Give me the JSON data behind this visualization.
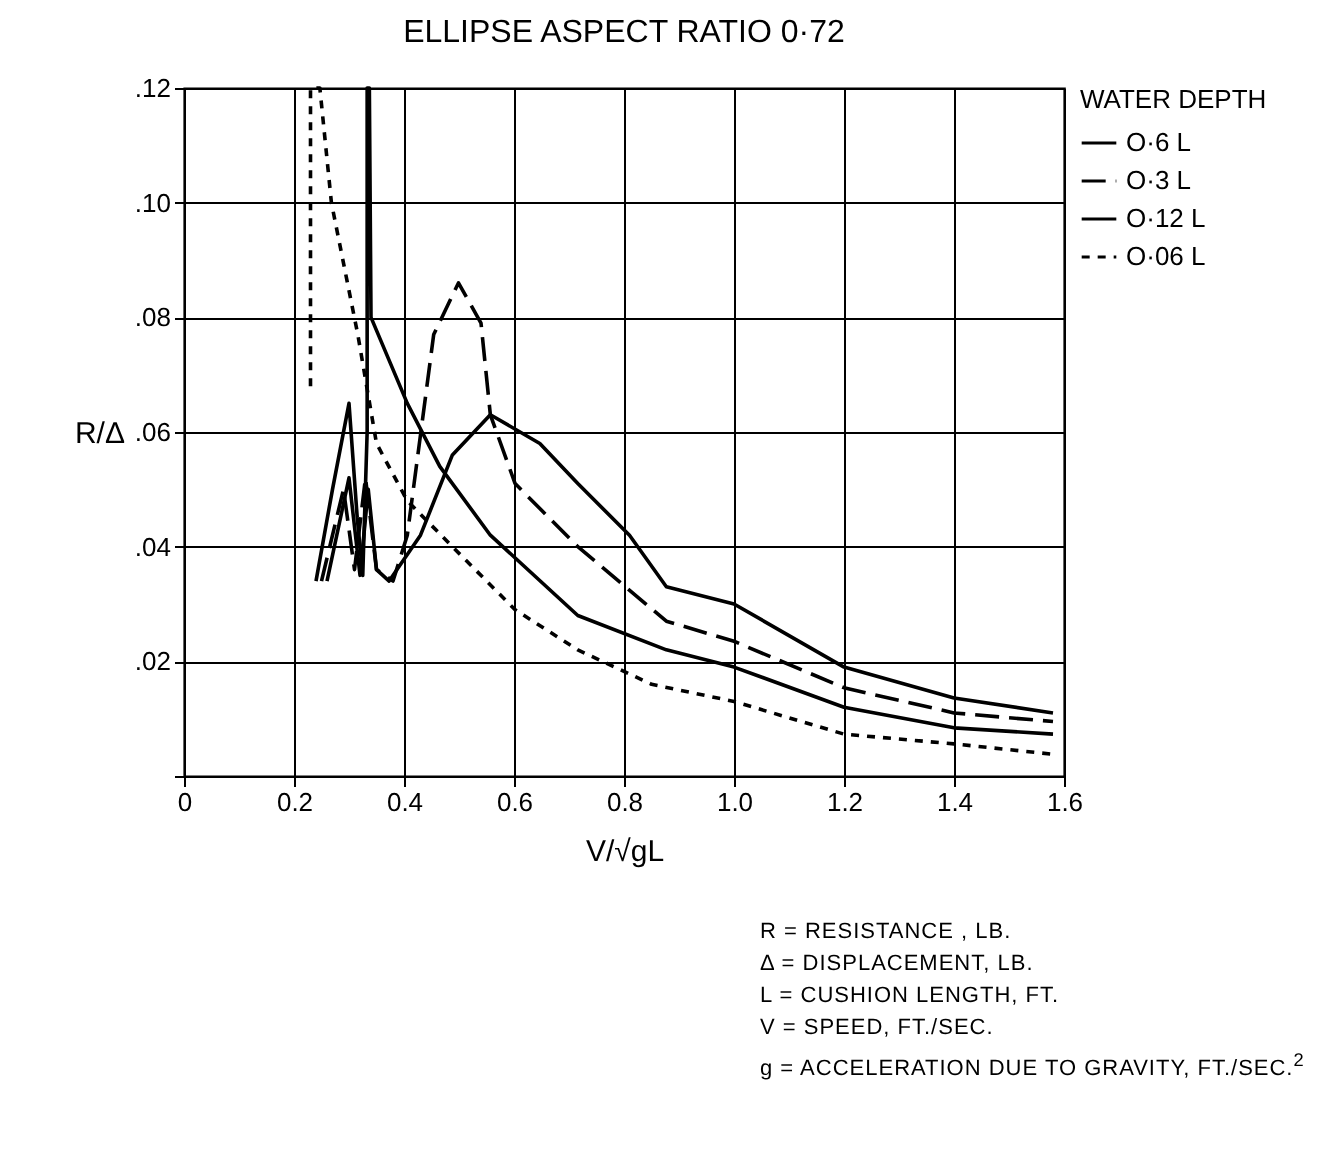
{
  "chart_data": {
    "type": "line",
    "title": "ELLIPSE ASPECT RATIO 0·72",
    "xlabel": "V/√gL",
    "ylabel": "R/Δ",
    "legend_title": "WATER DEPTH",
    "legend": "right",
    "grid": true,
    "xlim": [
      0,
      1.6
    ],
    "ylim": [
      0,
      0.12
    ],
    "xticks": [
      0,
      0.2,
      0.4,
      0.6,
      0.8,
      {
        "value": 1.0,
        "label": "1.0"
      },
      1.2,
      1.4,
      1.6
    ],
    "yticks": [
      {
        "value": 0,
        "label": null
      },
      {
        "value": 0.02,
        "label": ".02"
      },
      {
        "value": 0.04,
        "label": ".04"
      },
      {
        "value": 0.06,
        "label": ".06"
      },
      {
        "value": 0.08,
        "label": ".08"
      },
      {
        "value": 0.1,
        "label": ".10"
      },
      {
        "value": 0.12,
        "label": ".12"
      }
    ],
    "series": [
      {
        "name": "O·6 L",
        "color": "#000000",
        "line_style": "solid",
        "x": [
          0.26,
          0.3,
          0.32,
          0.335,
          0.35,
          0.373,
          0.43,
          0.488,
          0.557,
          0.647,
          0.716,
          0.81,
          0.877,
          1.0,
          1.2,
          1.4,
          1.58
        ],
        "values": [
          0.034,
          0.052,
          0.035,
          0.05,
          0.036,
          0.034,
          0.042,
          0.056,
          0.063,
          0.058,
          0.051,
          0.042,
          0.033,
          0.03,
          0.019,
          0.0136,
          0.011
        ]
      },
      {
        "name": "O·3 L",
        "color": "#000000",
        "line_style": "dashed",
        "x": [
          0.25,
          0.29,
          0.31,
          0.33,
          0.35,
          0.38,
          0.406,
          0.454,
          0.499,
          0.54,
          0.557,
          0.602,
          0.716,
          0.877,
          1.0,
          1.2,
          1.4,
          1.58
        ],
        "values": [
          0.034,
          0.05,
          0.036,
          0.052,
          0.036,
          0.034,
          0.042,
          0.077,
          0.086,
          0.079,
          0.063,
          0.051,
          0.04,
          0.027,
          0.0235,
          0.0154,
          0.011,
          0.0095
        ]
      },
      {
        "name": "O·12 L",
        "color": "#000000",
        "line_style": "solid",
        "x": [
          0.24,
          0.27,
          0.3,
          0.315,
          0.325,
          0.333,
          0.333,
          0.337,
          0.34,
          0.406,
          0.465,
          0.557,
          0.716,
          0.877,
          1.0,
          1.2,
          1.4,
          1.58
        ],
        "values": [
          0.034,
          0.05,
          0.065,
          0.045,
          0.035,
          0.06,
          0.12,
          0.12,
          0.08,
          0.065,
          0.054,
          0.042,
          0.028,
          0.022,
          0.019,
          0.012,
          0.0084,
          0.0073
        ]
      },
      {
        "name": "O·06 L",
        "color": "#000000",
        "line_style": "dotted",
        "x": [
          0.23,
          0.23,
          0.247,
          0.268,
          0.316,
          0.35,
          0.406,
          0.488,
          0.602,
          0.716,
          0.85,
          1.0,
          1.2,
          1.4,
          1.58
        ],
        "values": [
          0.068,
          0.12,
          0.12,
          0.1,
          0.077,
          0.058,
          0.048,
          0.04,
          0.029,
          0.022,
          0.016,
          0.013,
          0.0073,
          0.0056,
          0.0038
        ]
      }
    ],
    "annotations": [
      "R = RESISTANCE , LB.",
      "Δ = DISPLACEMENT, LB.",
      "L = CUSHION LENGTH, FT.",
      "V = SPEED, FT./SEC.",
      "g = ACCELERATION DUE TO GRAVITY, FT./SEC.$^{2}$"
    ]
  }
}
